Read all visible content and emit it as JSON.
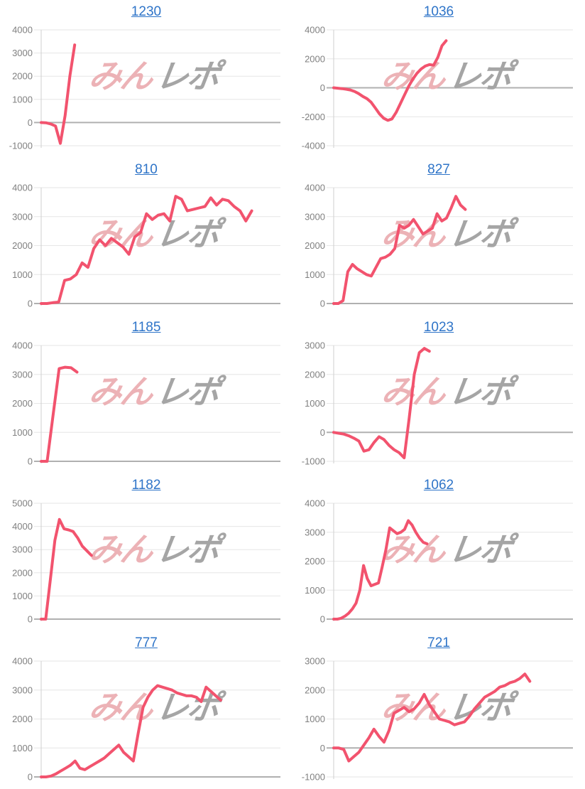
{
  "page": {
    "background": "#ffffff"
  },
  "watermark": {
    "pink_text": "みん",
    "gray_text": "レポ",
    "pink_color": "#ecb2b6",
    "gray_color": "#a5a5a5"
  },
  "style": {
    "line_color": "#f2536e",
    "grid_color": "#e6e6e6",
    "zero_line_color": "#b0b0b0",
    "axis_color": "#cfcfcf",
    "tick_label_color": "#808080",
    "title_link_color": "#2e74c8"
  },
  "chart_data": [
    {
      "type": "line",
      "title": "1230",
      "xlabel": "",
      "ylabel": "",
      "ylim": [
        -1000,
        4000
      ],
      "yticks": [
        4000,
        3000,
        2000,
        1000,
        0,
        -1000
      ],
      "grid": true,
      "legend": "none",
      "line_span_fraction": 0.14,
      "values": [
        0,
        -10,
        -60,
        -150,
        -900,
        300,
        2000,
        3350
      ]
    },
    {
      "type": "line",
      "title": "1036",
      "xlabel": "",
      "ylabel": "",
      "ylim": [
        -4000,
        4000
      ],
      "yticks": [
        4000,
        2000,
        0,
        -2000,
        -4000
      ],
      "grid": true,
      "legend": "none",
      "line_span_fraction": 0.47,
      "values": [
        0,
        -30,
        -60,
        -100,
        -150,
        -250,
        -400,
        -600,
        -750,
        -1000,
        -1400,
        -1800,
        -2100,
        -2250,
        -2150,
        -1700,
        -1100,
        -500,
        100,
        600,
        1000,
        1300,
        1500,
        1600,
        1560,
        2100,
        2900,
        3250
      ]
    },
    {
      "type": "line",
      "title": "810",
      "xlabel": "",
      "ylabel": "",
      "ylim": [
        0,
        4000
      ],
      "yticks": [
        4000,
        3000,
        2000,
        1000,
        0
      ],
      "grid": true,
      "legend": "none",
      "line_span_fraction": 0.88,
      "values": [
        0,
        0,
        30,
        50,
        800,
        850,
        1000,
        1400,
        1250,
        1900,
        2200,
        2000,
        2250,
        2100,
        1950,
        1700,
        2300,
        2450,
        3100,
        2900,
        3050,
        3100,
        2850,
        3700,
        3600,
        3200,
        3250,
        3300,
        3350,
        3650,
        3400,
        3600,
        3550,
        3350,
        3200,
        2850,
        3200
      ]
    },
    {
      "type": "line",
      "title": "827",
      "xlabel": "",
      "ylabel": "",
      "ylim": [
        0,
        4000
      ],
      "yticks": [
        4000,
        3000,
        2000,
        1000,
        0
      ],
      "grid": true,
      "legend": "none",
      "line_span_fraction": 0.55,
      "values": [
        0,
        0,
        100,
        1100,
        1350,
        1200,
        1100,
        1000,
        950,
        1250,
        1550,
        1600,
        1700,
        1900,
        2700,
        2600,
        2700,
        2900,
        2650,
        2400,
        2500,
        2600,
        3100,
        2850,
        2950,
        3300,
        3700,
        3400,
        3250
      ]
    },
    {
      "type": "line",
      "title": "1185",
      "xlabel": "",
      "ylabel": "",
      "ylim": [
        0,
        4000
      ],
      "yticks": [
        4000,
        3000,
        2000,
        1000,
        0
      ],
      "grid": true,
      "legend": "none",
      "line_span_fraction": 0.15,
      "values": [
        0,
        0,
        1600,
        3200,
        3250,
        3230,
        3080
      ]
    },
    {
      "type": "line",
      "title": "1023",
      "xlabel": "",
      "ylabel": "",
      "ylim": [
        -1000,
        3000
      ],
      "yticks": [
        3000,
        2000,
        1000,
        0,
        -1000
      ],
      "grid": true,
      "legend": "none",
      "line_span_fraction": 0.4,
      "values": [
        0,
        -30,
        -60,
        -120,
        -200,
        -300,
        -650,
        -600,
        -350,
        -150,
        -250,
        -450,
        -600,
        -700,
        -880,
        500,
        2000,
        2750,
        2900,
        2800
      ]
    },
    {
      "type": "line",
      "title": "1182",
      "xlabel": "",
      "ylabel": "",
      "ylim": [
        0,
        5000
      ],
      "yticks": [
        5000,
        4000,
        3000,
        2000,
        1000,
        0
      ],
      "grid": true,
      "legend": "none",
      "line_span_fraction": 0.21,
      "values": [
        0,
        0,
        1700,
        3400,
        4300,
        3900,
        3850,
        3780,
        3500,
        3150,
        2950,
        2750
      ]
    },
    {
      "type": "line",
      "title": "1062",
      "xlabel": "",
      "ylabel": "",
      "ylim": [
        0,
        4000
      ],
      "yticks": [
        4000,
        3000,
        2000,
        1000,
        0
      ],
      "grid": true,
      "legend": "none",
      "line_span_fraction": 0.39,
      "values": [
        0,
        0,
        30,
        100,
        200,
        350,
        550,
        1000,
        1850,
        1400,
        1150,
        1200,
        1250,
        1800,
        2400,
        3150,
        3050,
        2950,
        3000,
        3100,
        3400,
        3250,
        3000,
        2800,
        2650,
        2600
      ]
    },
    {
      "type": "line",
      "title": "777",
      "xlabel": "",
      "ylabel": "",
      "ylim": [
        0,
        4000
      ],
      "yticks": [
        4000,
        3000,
        2000,
        1000,
        0
      ],
      "grid": true,
      "legend": "none",
      "line_span_fraction": 0.75,
      "values": [
        0,
        0,
        30,
        100,
        200,
        300,
        400,
        550,
        300,
        250,
        350,
        450,
        550,
        650,
        800,
        950,
        1100,
        850,
        700,
        550,
        1500,
        2400,
        2750,
        3000,
        3150,
        3100,
        3050,
        3000,
        2900,
        2850,
        2800,
        2800,
        2750,
        2600,
        3100,
        2950,
        2800,
        2650
      ]
    },
    {
      "type": "line",
      "title": "721",
      "xlabel": "",
      "ylabel": "",
      "ylim": [
        -1000,
        3000
      ],
      "yticks": [
        3000,
        2000,
        1000,
        0,
        -1000
      ],
      "grid": true,
      "legend": "none",
      "line_span_fraction": 0.82,
      "values": [
        0,
        0,
        -50,
        -450,
        -300,
        -150,
        100,
        350,
        650,
        400,
        200,
        600,
        1200,
        1300,
        1400,
        1250,
        1350,
        1550,
        1850,
        1500,
        1250,
        1000,
        950,
        900,
        800,
        850,
        900,
        1100,
        1350,
        1550,
        1750,
        1850,
        1950,
        2100,
        2150,
        2250,
        2300,
        2400,
        2550,
        2300
      ]
    }
  ]
}
